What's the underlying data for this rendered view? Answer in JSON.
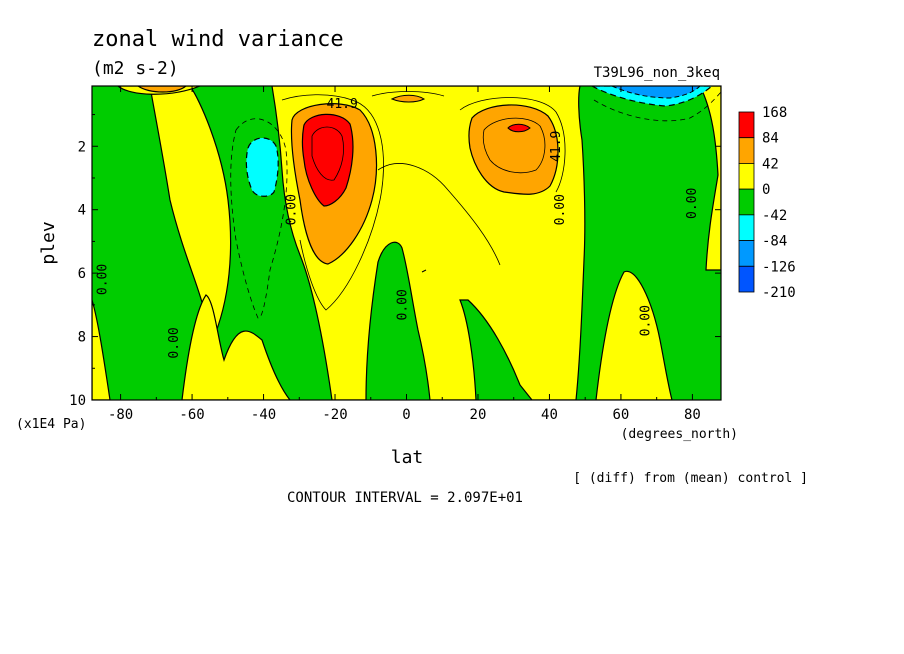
{
  "chart_data": {
    "type": "heatmap",
    "title": "zonal wind variance",
    "units": "(m2 s-2)",
    "run_label": "T39L96_non_3keq",
    "xlabel": "lat",
    "x_units": "(degrees_north)",
    "ylabel": "plev",
    "y_units": "(x1E4 Pa)",
    "xlim": [
      -88,
      88
    ],
    "ylim": [
      10,
      0.1
    ],
    "x_ticks": [
      -80,
      -60,
      -40,
      -20,
      0,
      20,
      40,
      60,
      80
    ],
    "x_tick_labels": [
      "-80",
      "-60",
      "-40",
      "-20",
      "0",
      "20",
      "40",
      "60",
      "80"
    ],
    "y_ticks": [
      2,
      4,
      6,
      8,
      10
    ],
    "y_tick_labels": [
      "2",
      "4",
      "6",
      "8",
      "10"
    ],
    "colorbar": {
      "labels": [
        "168",
        "84",
        "42",
        "0",
        "-42",
        "-84",
        "-126",
        "-210"
      ],
      "colors": [
        "#ff0000",
        "#ffa500",
        "#ffff00",
        "#00cc00",
        "#00ffff",
        "#0099ff",
        "#0055ff"
      ]
    },
    "contour_labels": [
      {
        "text": "41.9",
        "lat": -18,
        "plev": 0.8
      },
      {
        "text": "41.9",
        "lat": 43,
        "plev": 2.0
      },
      {
        "text": "0.00",
        "lat": -31,
        "plev": 4.0
      },
      {
        "text": "0.00",
        "lat": -84,
        "plev": 6.2
      },
      {
        "text": "0.00",
        "lat": -64,
        "plev": 8.2
      },
      {
        "text": "0.00",
        "lat": 0,
        "plev": 7.0
      },
      {
        "text": "0.00",
        "lat": 44,
        "plev": 4.0
      },
      {
        "text": "0.00",
        "lat": 81,
        "plev": 3.8
      },
      {
        "text": "0.00",
        "lat": 68,
        "plev": 7.5
      }
    ],
    "grid": false,
    "legend": "right",
    "contour_interval_text": "CONTOUR INTERVAL = 2.097E+01",
    "diff_note": "[ (diff) from (mean) control ]"
  }
}
